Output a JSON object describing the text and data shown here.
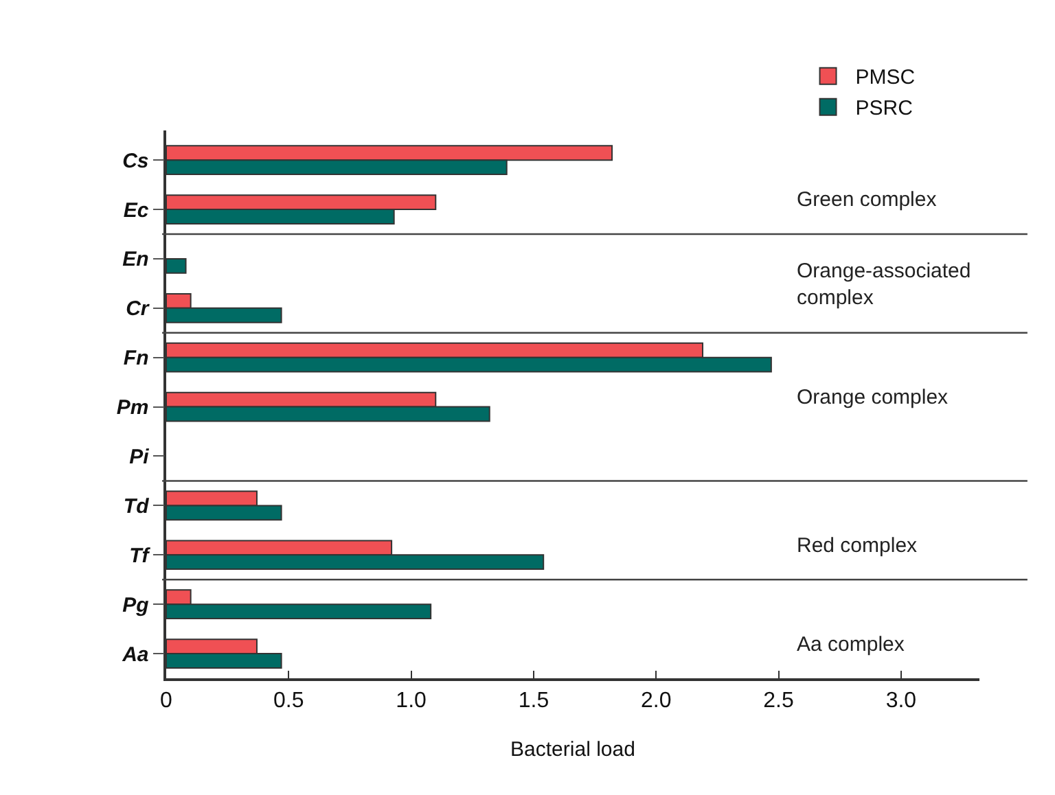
{
  "chart_data": {
    "type": "bar",
    "orientation": "horizontal",
    "xlabel": "Bacterial load",
    "categories": [
      "Cs",
      "Ec",
      "En",
      "Cr",
      "Fn",
      "Pm",
      "Pi",
      "Td",
      "Tf",
      "Pg",
      "Aa"
    ],
    "series": [
      {
        "name": "PMSC",
        "color": "#f05054",
        "values": [
          1.82,
          1.1,
          0,
          0.1,
          2.19,
          1.1,
          0,
          0.37,
          0.92,
          0.1,
          0.37
        ]
      },
      {
        "name": "PSRC",
        "color": "#006b64",
        "values": [
          1.39,
          0.93,
          0.08,
          0.47,
          2.47,
          1.32,
          0,
          0.47,
          1.54,
          1.08,
          0.47
        ]
      }
    ],
    "xlim": [
      0,
      3.32
    ],
    "xticks": [
      0,
      0.5,
      {
        "value": 1,
        "label": "1.0"
      },
      1.5,
      {
        "value": 2,
        "label": "2.0"
      },
      2.5,
      {
        "value": 3,
        "label": "3.0"
      }
    ],
    "annotations": [
      "Green complex",
      "Orange-associated complex",
      "Orange complex",
      "Red complex",
      "Aa complex"
    ],
    "legend": "top right"
  }
}
